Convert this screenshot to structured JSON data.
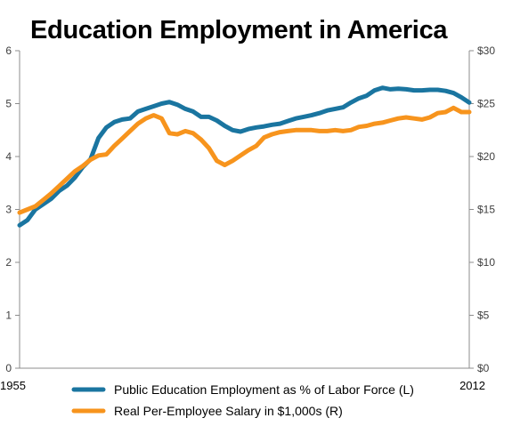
{
  "chart_data": {
    "type": "line",
    "title": "Education Employment in America",
    "x_tick_labels": [
      "1955",
      "2012"
    ],
    "x_range": [
      1955,
      2012
    ],
    "y_left": {
      "range": [
        0,
        6
      ],
      "ticks": [
        "0",
        "1",
        "2",
        "3",
        "4",
        "5",
        "6"
      ]
    },
    "y_right": {
      "range": [
        0,
        30
      ],
      "ticks": [
        "$0",
        "$5",
        "$10",
        "$15",
        "$20",
        "$25",
        "$30"
      ]
    },
    "grid": false,
    "legend_position": "bottom",
    "series": [
      {
        "name": "Public Education Employment as % of Labor Force (L)",
        "axis": "left",
        "color": "#1a75a0",
        "x": [
          1955,
          1956,
          1957,
          1958,
          1959,
          1960,
          1961,
          1962,
          1963,
          1964,
          1965,
          1966,
          1967,
          1968,
          1969,
          1970,
          1971,
          1972,
          1973,
          1974,
          1975,
          1976,
          1977,
          1978,
          1979,
          1980,
          1981,
          1982,
          1983,
          1984,
          1985,
          1986,
          1987,
          1988,
          1989,
          1990,
          1991,
          1992,
          1993,
          1994,
          1995,
          1996,
          1997,
          1998,
          1999,
          2000,
          2001,
          2002,
          2003,
          2004,
          2005,
          2006,
          2007,
          2008,
          2009,
          2010,
          2011,
          2012
        ],
        "values": [
          2.7,
          2.8,
          3.0,
          3.1,
          3.2,
          3.35,
          3.45,
          3.6,
          3.8,
          3.95,
          4.35,
          4.55,
          4.65,
          4.7,
          4.72,
          4.85,
          4.9,
          4.95,
          5.0,
          5.03,
          4.98,
          4.9,
          4.85,
          4.75,
          4.75,
          4.68,
          4.58,
          4.5,
          4.47,
          4.52,
          4.55,
          4.57,
          4.6,
          4.62,
          4.67,
          4.72,
          4.75,
          4.78,
          4.82,
          4.87,
          4.9,
          4.93,
          5.02,
          5.1,
          5.15,
          5.25,
          5.3,
          5.27,
          5.28,
          5.27,
          5.25,
          5.25,
          5.26,
          5.26,
          5.24,
          5.2,
          5.12,
          5.02
        ]
      },
      {
        "name": "Real Per-Employee Salary in $1,000s (R)",
        "axis": "right",
        "color": "#f7941d",
        "x": [
          1955,
          1956,
          1957,
          1958,
          1959,
          1960,
          1961,
          1962,
          1963,
          1964,
          1965,
          1966,
          1967,
          1968,
          1969,
          1970,
          1971,
          1972,
          1973,
          1974,
          1975,
          1976,
          1977,
          1978,
          1979,
          1980,
          1981,
          1982,
          1983,
          1984,
          1985,
          1986,
          1987,
          1988,
          1989,
          1990,
          1991,
          1992,
          1993,
          1994,
          1995,
          1996,
          1997,
          1998,
          1999,
          2000,
          2001,
          2002,
          2003,
          2004,
          2005,
          2006,
          2007,
          2008,
          2009,
          2010,
          2011,
          2012
        ],
        "values": [
          14.7,
          15.0,
          15.3,
          15.9,
          16.5,
          17.2,
          17.9,
          18.6,
          19.1,
          19.7,
          20.1,
          20.2,
          21.0,
          21.7,
          22.4,
          23.1,
          23.6,
          23.9,
          23.6,
          22.2,
          22.1,
          22.4,
          22.2,
          21.6,
          20.8,
          19.6,
          19.2,
          19.6,
          20.1,
          20.6,
          21.0,
          21.8,
          22.1,
          22.3,
          22.4,
          22.5,
          22.5,
          22.5,
          22.4,
          22.4,
          22.5,
          22.4,
          22.5,
          22.8,
          22.9,
          23.1,
          23.2,
          23.4,
          23.6,
          23.7,
          23.6,
          23.5,
          23.7,
          24.1,
          24.2,
          24.6,
          24.2,
          24.2
        ]
      }
    ]
  }
}
